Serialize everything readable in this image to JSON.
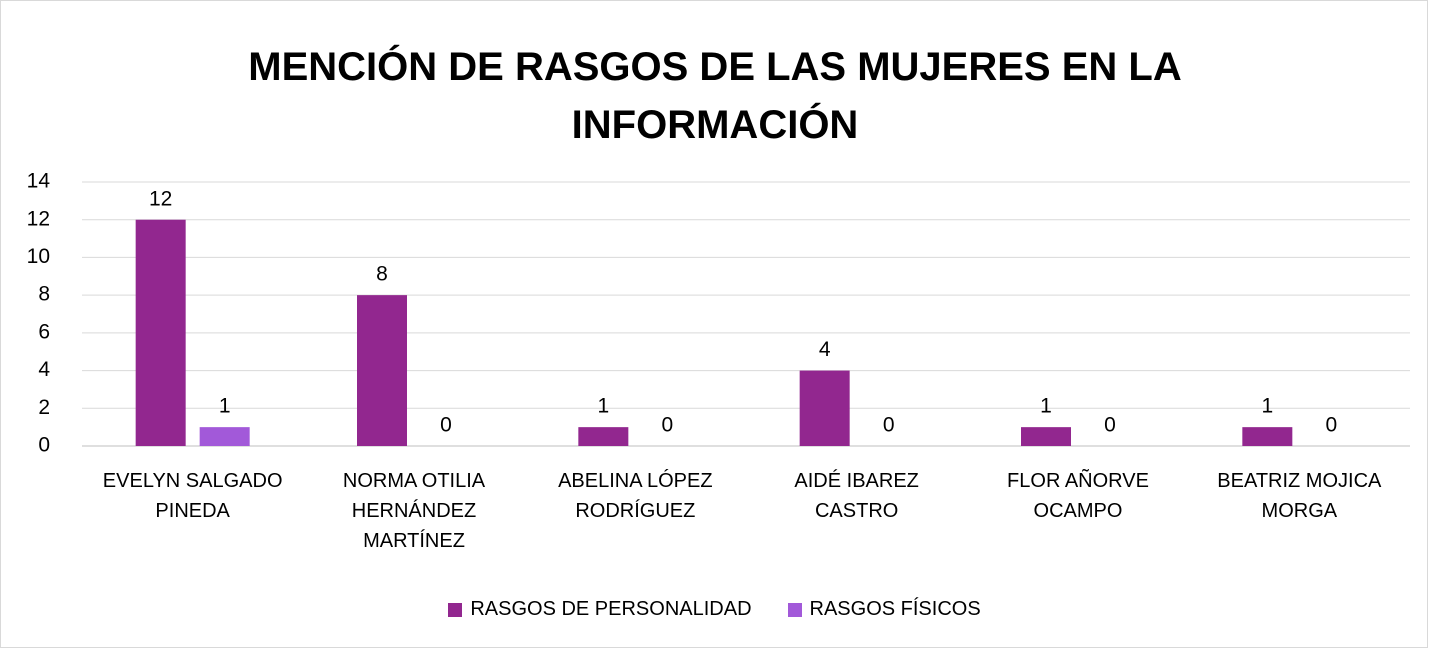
{
  "chart_data": {
    "type": "bar",
    "title": "MENCIÓN DE RASGOS DE LAS MUJERES EN LA INFORMACIÓN",
    "categories": [
      "EVELYN SALGADO PINEDA",
      "NORMA OTILIA HERNÁNDEZ MARTÍNEZ",
      "ABELINA LÓPEZ RODRÍGUEZ",
      "AIDÉ IBAREZ CASTRO",
      "FLOR AÑORVE OCAMPO",
      "BEATRIZ MOJICA MORGA"
    ],
    "series": [
      {
        "name": "RASGOS DE PERSONALIDAD",
        "color": "#92278f",
        "values": [
          12,
          8,
          1,
          4,
          1,
          1
        ]
      },
      {
        "name": "RASGOS FÍSICOS",
        "color": "#a259d9",
        "values": [
          1,
          0,
          0,
          0,
          0,
          0
        ]
      }
    ],
    "ylim": [
      0,
      14
    ],
    "yticks": [
      0,
      2,
      4,
      6,
      8,
      10,
      12,
      14
    ],
    "grid": true,
    "legend": "bottom"
  }
}
